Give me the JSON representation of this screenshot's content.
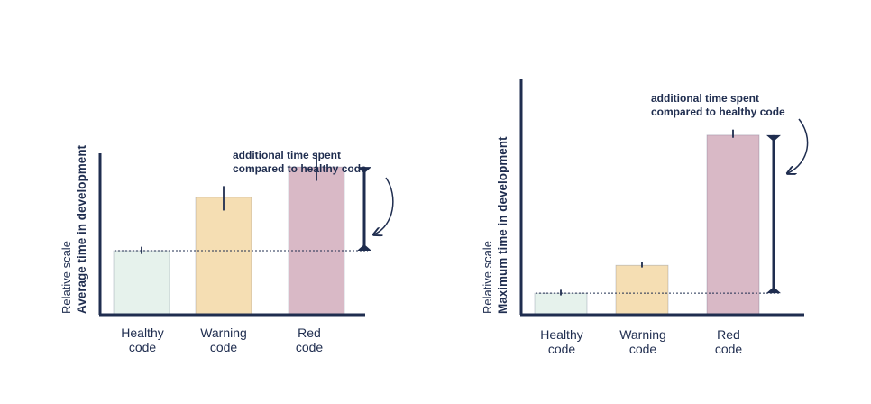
{
  "chart_data": [
    {
      "type": "bar",
      "ylabel_top": "Relative scale",
      "ylabel": "Average time in development",
      "categories": [
        {
          "line1": "Healthy",
          "line2": "code"
        },
        {
          "line1": "Warning",
          "line2": "code"
        },
        {
          "line1": "Red",
          "line2": "code"
        }
      ],
      "values": [
        0.97,
        1.78,
        2.24
      ],
      "error_low": [
        0.92,
        1.58,
        2.03
      ],
      "error_high": [
        1.03,
        1.95,
        2.45
      ],
      "ylim": [
        0,
        3.5
      ],
      "reference_line": 0.97,
      "annotation": {
        "line1": "additional time spent",
        "line2": "compared to healthy code"
      },
      "bar_colors": [
        "#e6f2ec",
        "#f5deb3",
        "#d9b9c6"
      ]
    },
    {
      "type": "bar",
      "ylabel_top": "Relative scale",
      "ylabel": "Maximum time in development",
      "categories": [
        {
          "line1": "Healthy",
          "line2": "code"
        },
        {
          "line1": "Warning",
          "line2": "code"
        },
        {
          "line1": "Red",
          "line2": "code"
        }
      ],
      "values": [
        1.0,
        2.3,
        8.36
      ],
      "error_low": [
        0.9,
        2.2,
        8.24
      ],
      "error_high": [
        1.16,
        2.44,
        8.62
      ],
      "ylim": [
        0,
        11
      ],
      "reference_line": 1.0,
      "annotation": {
        "line1": "additional time spent",
        "line2": "compared to healthy code"
      },
      "bar_colors": [
        "#e6f2ec",
        "#f5deb3",
        "#d9b9c6"
      ]
    }
  ]
}
